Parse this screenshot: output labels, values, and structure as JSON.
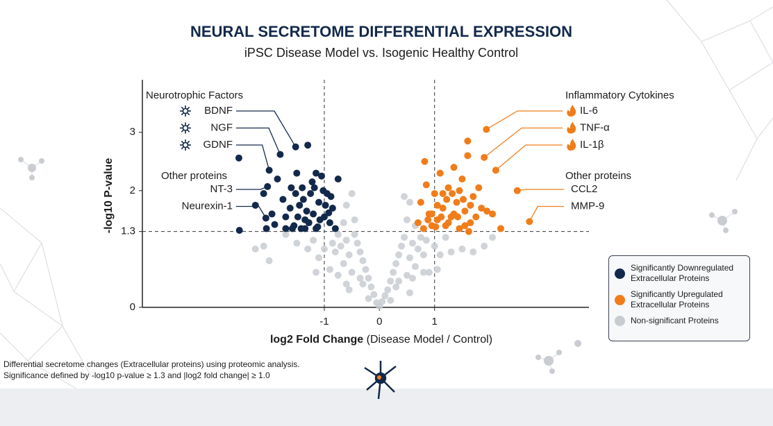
{
  "chart_data": {
    "type": "scatter",
    "title": "NEURAL SECRETOME DIFFERENTIAL EXPRESSION",
    "subtitle": "iPSC Disease Model vs. Isogenic Healthy Control",
    "x_label": "log2 Fold Change",
    "x_label_note": "(Disease Model / Control)",
    "y_label": "-log10 P-value",
    "xlim": [
      -4.3,
      3.8
    ],
    "ylim": [
      0,
      3.9
    ],
    "xticks": [
      -1,
      0,
      1
    ],
    "yticks": [
      0,
      1.3,
      2,
      3
    ],
    "threshold_x": [
      -1,
      1
    ],
    "threshold_y": 1.3,
    "series": [
      {
        "name": "Significantly Downregulated Extracellular Proteins",
        "color": "#13294b",
        "x": [
          -2.55,
          -2.54,
          -2.25,
          -2.05,
          -1.9,
          -1.85,
          -1.75,
          -1.7,
          -1.6,
          -1.55,
          -1.5,
          -1.45,
          -1.4,
          -1.35,
          -1.3,
          -1.25,
          -1.2,
          -1.15,
          -1.1,
          -1.05,
          -1.0,
          -0.95,
          -0.9,
          -0.85,
          -0.8,
          -1.62,
          -1.48,
          -1.38,
          -1.28,
          -1.18,
          -1.08,
          -0.98,
          -0.88,
          -1.52,
          -1.42,
          -1.32,
          -1.22,
          -1.12,
          -1.02,
          -0.92,
          -1.7,
          -1.58,
          -1.35,
          -1.15,
          -0.75,
          -2.1,
          -1.95
        ],
        "values": [
          2.56,
          1.32,
          1.75,
          1.35,
          1.42,
          2.2,
          1.85,
          1.55,
          2.05,
          1.4,
          2.3,
          1.75,
          2.05,
          1.5,
          2.78,
          1.95,
          1.6,
          2.3,
          1.8,
          2.25,
          1.55,
          1.95,
          1.45,
          1.7,
          1.35,
          1.7,
          1.55,
          1.85,
          1.45,
          2.05,
          1.5,
          1.75,
          1.9,
          1.95,
          1.35,
          1.65,
          2.15,
          1.38,
          2.0,
          1.62,
          1.35,
          1.35,
          1.35,
          1.35,
          2.2,
          1.95,
          1.6
        ]
      },
      {
        "name": "Significantly Upregulated Extracellular Proteins",
        "color": "#f07d1a",
        "x": [
          0.7,
          0.75,
          0.8,
          0.85,
          0.9,
          0.95,
          1.0,
          1.05,
          1.1,
          1.15,
          1.2,
          1.25,
          1.3,
          1.35,
          1.4,
          1.45,
          1.5,
          1.55,
          1.6,
          1.65,
          1.7,
          1.75,
          1.8,
          1.85,
          1.95,
          2.05,
          2.2,
          0.95,
          1.05,
          1.15,
          1.25,
          1.35,
          1.45,
          1.55,
          1.65,
          0.88,
          1.02,
          1.12,
          1.22,
          1.32,
          1.42,
          1.52,
          1.62,
          0.82,
          1.6
        ],
        "values": [
          1.45,
          1.8,
          1.35,
          2.1,
          1.6,
          1.4,
          1.95,
          1.5,
          2.3,
          1.7,
          1.4,
          2.05,
          1.55,
          2.4,
          1.8,
          1.35,
          2.2,
          1.65,
          2.6,
          1.45,
          1.9,
          1.55,
          2.05,
          1.7,
          1.65,
          1.6,
          1.35,
          1.6,
          1.75,
          1.95,
          1.45,
          1.6,
          2.0,
          1.4,
          1.75,
          1.5,
          1.38,
          1.55,
          1.85,
          1.95,
          1.55,
          1.85,
          1.3,
          2.5,
          2.85
        ]
      },
      {
        "name": "Non-significant Proteins",
        "color": "#c8ccd1",
        "x": [
          0,
          0.05,
          -0.05,
          0.1,
          -0.1,
          0.15,
          -0.15,
          0.2,
          -0.2,
          0.25,
          -0.25,
          0.3,
          -0.3,
          0.35,
          -0.35,
          0.4,
          -0.4,
          0.45,
          -0.45,
          0.5,
          -0.5,
          0.55,
          -0.55,
          0.6,
          -0.6,
          0.65,
          -0.65,
          0.7,
          -0.7,
          0.75,
          -0.75,
          0.8,
          -0.8,
          0.85,
          -0.85,
          0.9,
          -0.9,
          1.0,
          -1.0,
          1.1,
          -1.1,
          1.2,
          -1.2,
          1.3,
          -1.3,
          1.5,
          -1.5,
          1.7,
          -1.7,
          1.9,
          -2.1,
          2.05,
          -2.0,
          0.45,
          0.55,
          -0.5,
          -0.6,
          -0.45,
          0.5,
          -0.65,
          0.65,
          -0.3,
          0.3,
          -0.55,
          0.55,
          -0.2,
          0.2,
          -0.35,
          0.35,
          -0.6,
          0.6,
          -0.75,
          0.8,
          -1.15,
          1.05,
          -2.25
        ],
        "values": [
          0.02,
          0.1,
          0.08,
          0.2,
          0.22,
          0.3,
          0.35,
          0.45,
          0.5,
          0.6,
          0.65,
          0.75,
          0.8,
          0.9,
          0.95,
          1.05,
          1.1,
          1.2,
          1.25,
          0.55,
          0.6,
          0.85,
          0.9,
          1.1,
          1.15,
          0.7,
          0.75,
          1.0,
          1.05,
          1.2,
          1.25,
          0.9,
          0.95,
          1.15,
          1.1,
          0.6,
          0.65,
          1.05,
          1.0,
          0.9,
          0.85,
          1.2,
          1.15,
          0.95,
          1.0,
          1.0,
          1.1,
          0.95,
          1.25,
          1.05,
          1.05,
          1.2,
          0.8,
          1.9,
          1.8,
          1.95,
          1.75,
          1.5,
          1.5,
          1.45,
          1.4,
          0.4,
          0.35,
          0.3,
          0.25,
          0.15,
          0.12,
          0.5,
          0.45,
          0.4,
          0.5,
          0.55,
          0.6,
          0.6,
          0.65,
          1.0
        ]
      }
    ],
    "annotation_groups": [
      {
        "title": "Neurotrophic Factors",
        "side": "left",
        "icon": "star",
        "color": "#13294b",
        "items": [
          {
            "label": "BDNF",
            "x": -1.52,
            "y": 2.75
          },
          {
            "label": "NGF",
            "x": -1.8,
            "y": 2.62
          },
          {
            "label": "GDNF",
            "x": -2.0,
            "y": 2.35
          }
        ]
      },
      {
        "title": "Other proteins",
        "side": "left",
        "color": "#13294b",
        "items": [
          {
            "label": "NT-3",
            "x": -2.03,
            "y": 2.07
          },
          {
            "label": "Neurexin-1",
            "x": -2.06,
            "y": 1.53
          }
        ]
      },
      {
        "title": "Inflammatory Cytokines",
        "side": "right",
        "icon": "flame",
        "color": "#f07d1a",
        "items": [
          {
            "label": "IL-6",
            "x": 1.94,
            "y": 3.05
          },
          {
            "label": "TNF-α",
            "x": 1.9,
            "y": 2.57
          },
          {
            "label": "IL-1β",
            "x": 2.11,
            "y": 2.35
          }
        ]
      },
      {
        "title": "Other proteins",
        "side": "right",
        "color": "#f07d1a",
        "items": [
          {
            "label": "CCL2",
            "x": 2.5,
            "y": 2.0
          },
          {
            "label": "MMP-9",
            "x": 2.72,
            "y": 1.47
          }
        ]
      }
    ],
    "footnote": [
      "Differential secretome changes (Extracellular proteins) using proteomic analysis.",
      "Significance defined by -log10 p-value ≥ 1.3 and |log2 fold change| ≥ 1.0"
    ]
  }
}
